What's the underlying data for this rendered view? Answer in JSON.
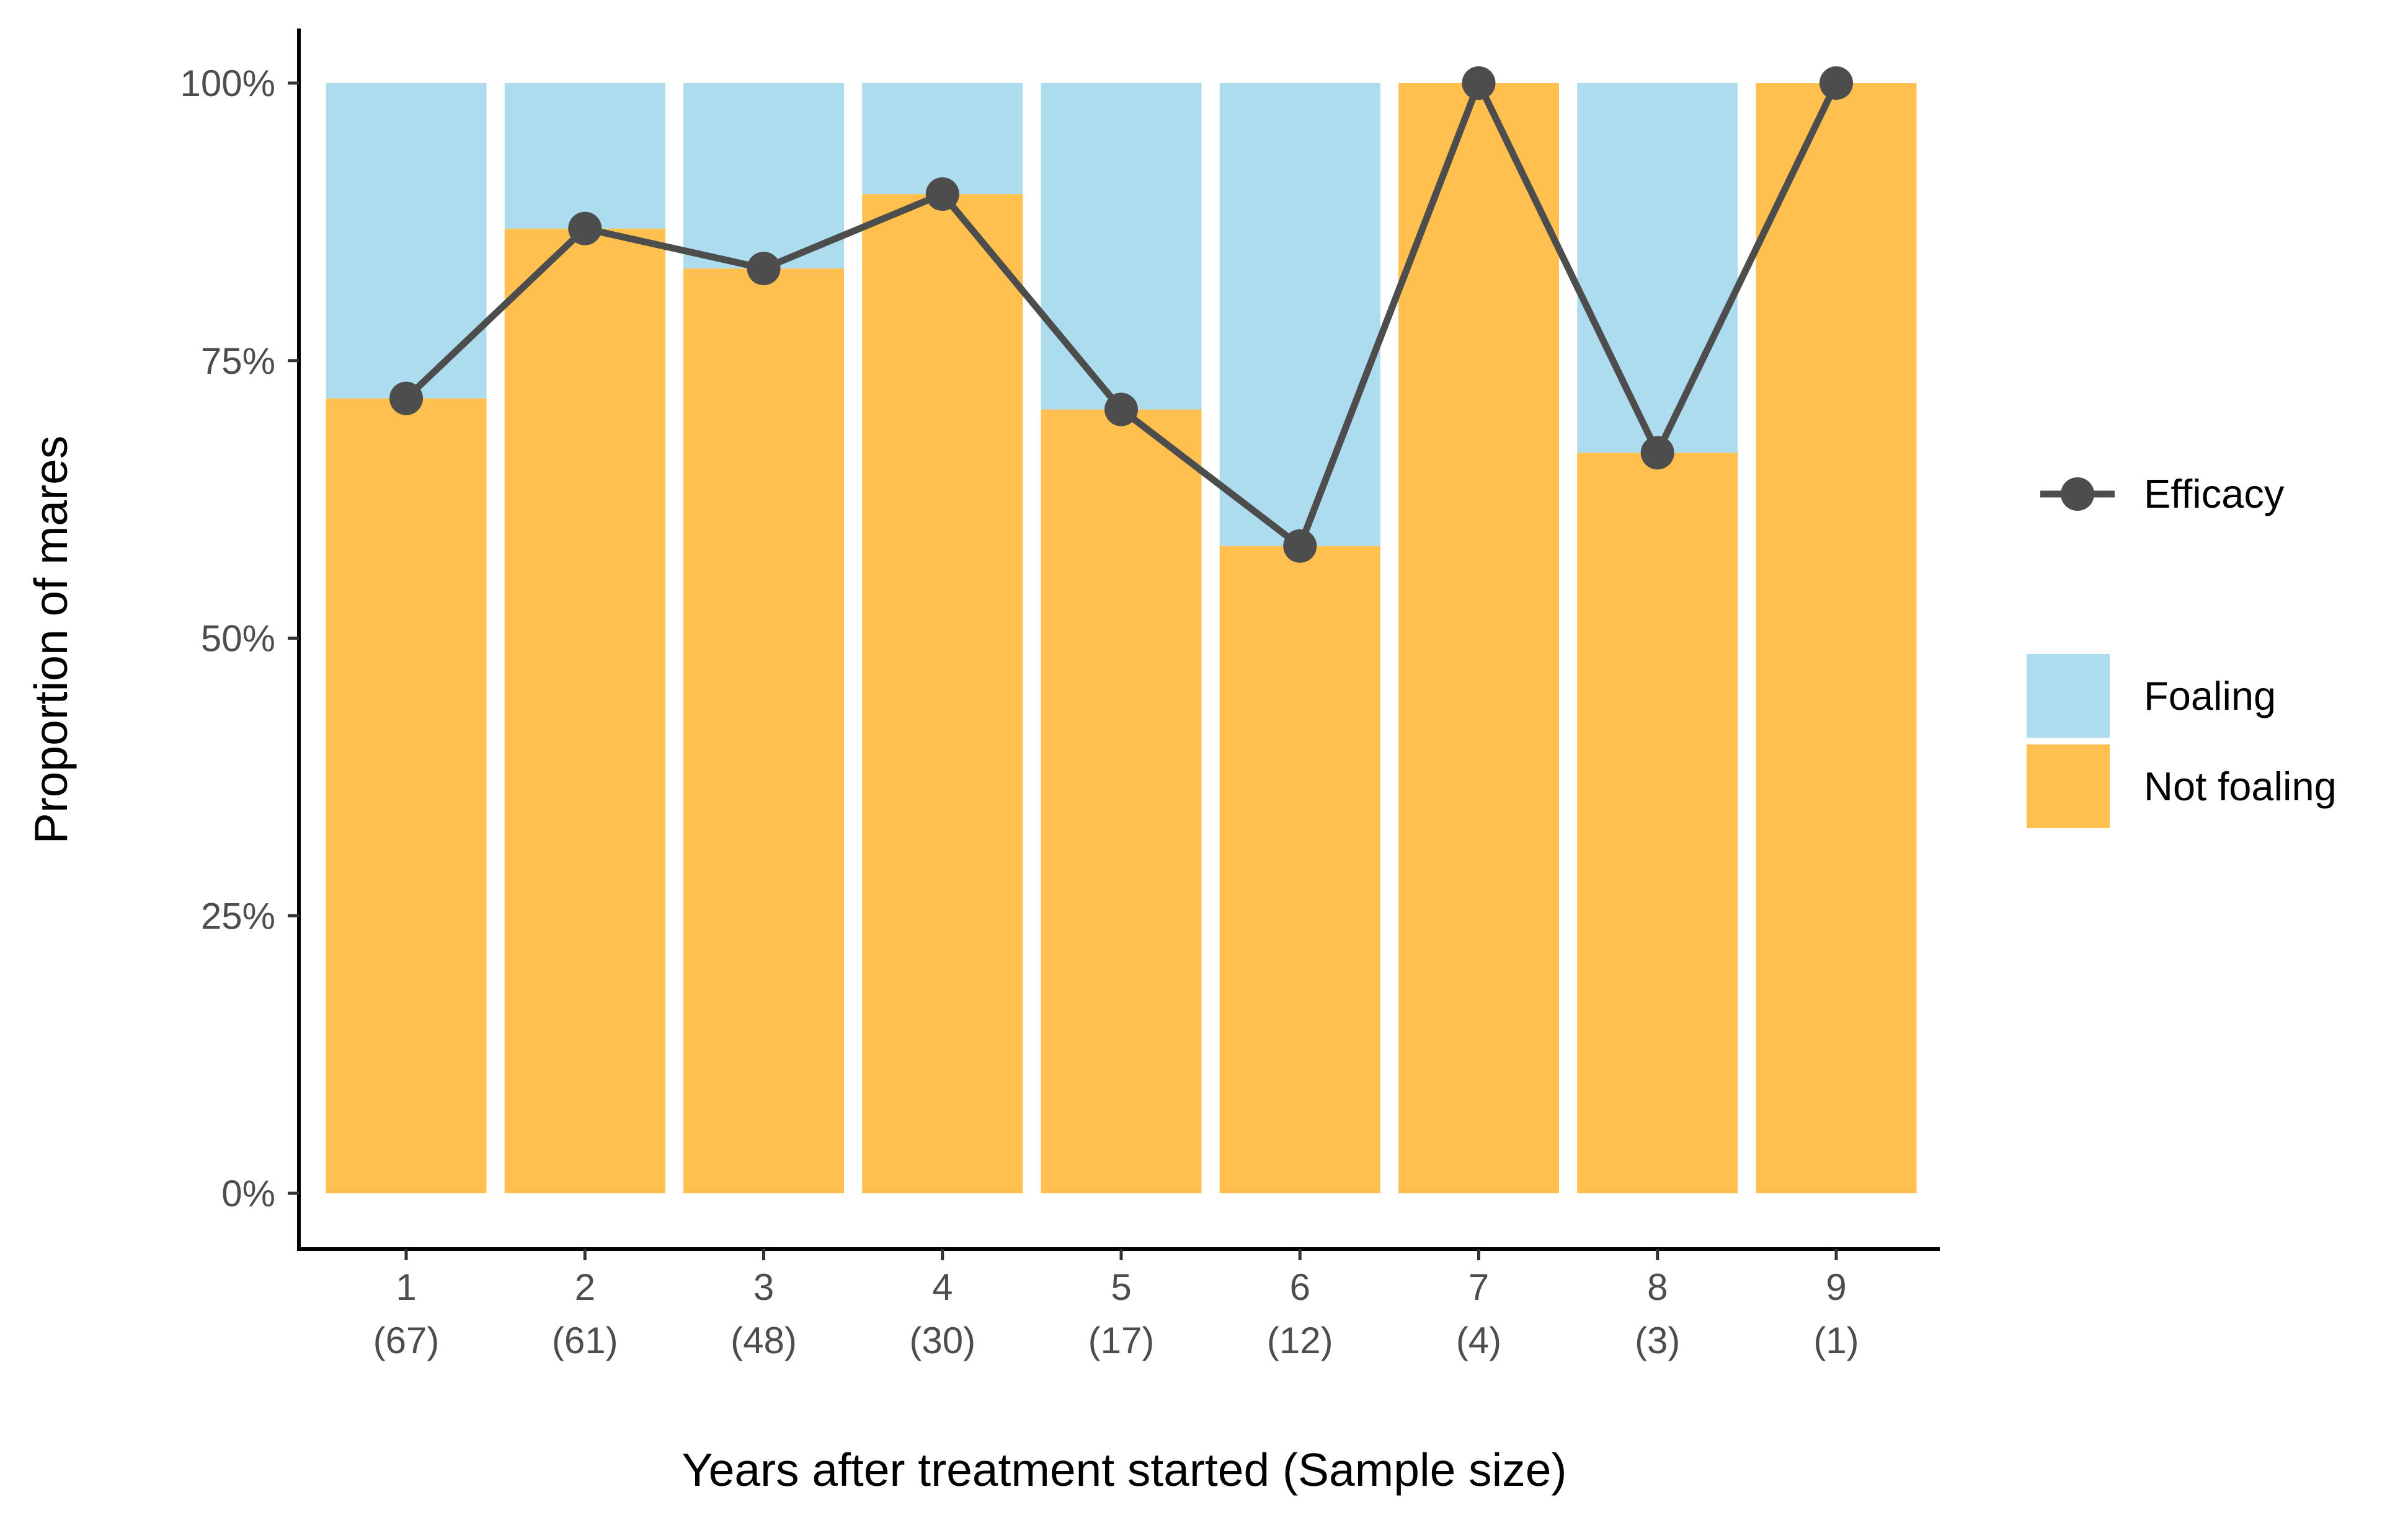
{
  "chart_data": {
    "type": "bar",
    "stacked": true,
    "xlabel": "Years after treatment started (Sample size)",
    "ylabel": "Proportion of mares",
    "ylim": [
      0,
      1
    ],
    "yticks": [
      "0%",
      "25%",
      "50%",
      "75%",
      "100%"
    ],
    "ytick_values": [
      0,
      0.25,
      0.5,
      0.75,
      1.0
    ],
    "categories": [
      "1",
      "2",
      "3",
      "4",
      "5",
      "6",
      "7",
      "8",
      "9"
    ],
    "sample_sizes": [
      "(67)",
      "(61)",
      "(48)",
      "(30)",
      "(17)",
      "(12)",
      "(4)",
      "(3)",
      "(1)"
    ],
    "series": [
      {
        "name": "Not foaling",
        "color": "#FFC04F",
        "values": [
          0.716,
          0.869,
          0.833,
          0.9,
          0.706,
          0.583,
          1.0,
          0.667,
          1.0
        ]
      },
      {
        "name": "Foaling",
        "color": "#ADDCEF",
        "values": [
          0.284,
          0.131,
          0.167,
          0.1,
          0.294,
          0.417,
          0.0,
          0.333,
          0.0
        ]
      }
    ],
    "line": {
      "name": "Efficacy",
      "color": "#4D4D4D",
      "values": [
        0.716,
        0.869,
        0.833,
        0.9,
        0.706,
        0.583,
        1.0,
        0.667,
        1.0
      ]
    },
    "grid": false,
    "legend_position": "right"
  }
}
